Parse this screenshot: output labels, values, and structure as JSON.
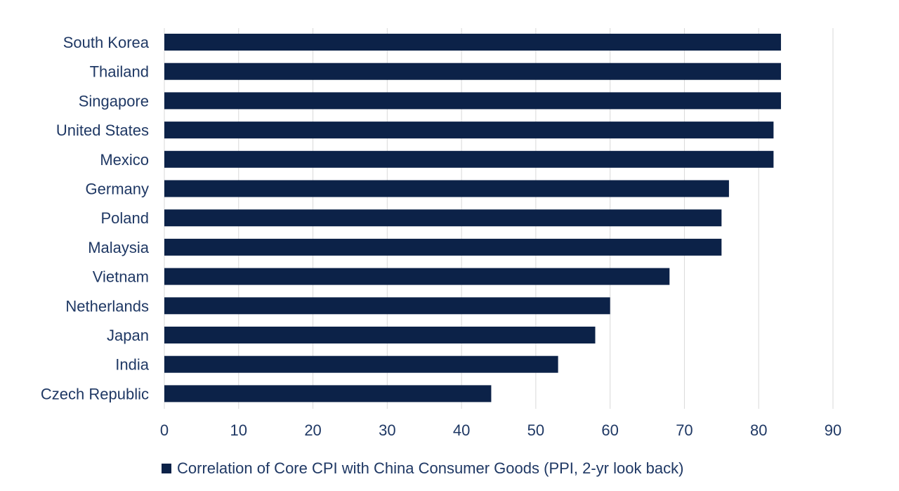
{
  "chart_data": {
    "type": "bar",
    "orientation": "horizontal",
    "categories": [
      "South Korea",
      "Thailand",
      "Singapore",
      "United States",
      "Mexico",
      "Germany",
      "Poland",
      "Malaysia",
      "Vietnam",
      "Netherlands",
      "Japan",
      "India",
      "Czech Republic"
    ],
    "series": [
      {
        "name": "Correlation of Core CPI with China Consumer Goods (PPI, 2-yr look back)",
        "values": [
          83,
          83,
          83,
          82,
          82,
          76,
          75,
          75,
          68,
          60,
          58,
          53,
          44
        ]
      }
    ],
    "xlim": [
      0,
      90
    ],
    "xticks": [
      "0",
      "10",
      "20",
      "30",
      "40",
      "50",
      "60",
      "70",
      "80",
      "90"
    ],
    "grid": "vertical",
    "legend_position": "bottom-left",
    "title": "",
    "xlabel": "",
    "ylabel": ""
  },
  "colors": {
    "bar": "#0c2248",
    "text": "#1f3864",
    "grid": "#d9d9d9"
  }
}
